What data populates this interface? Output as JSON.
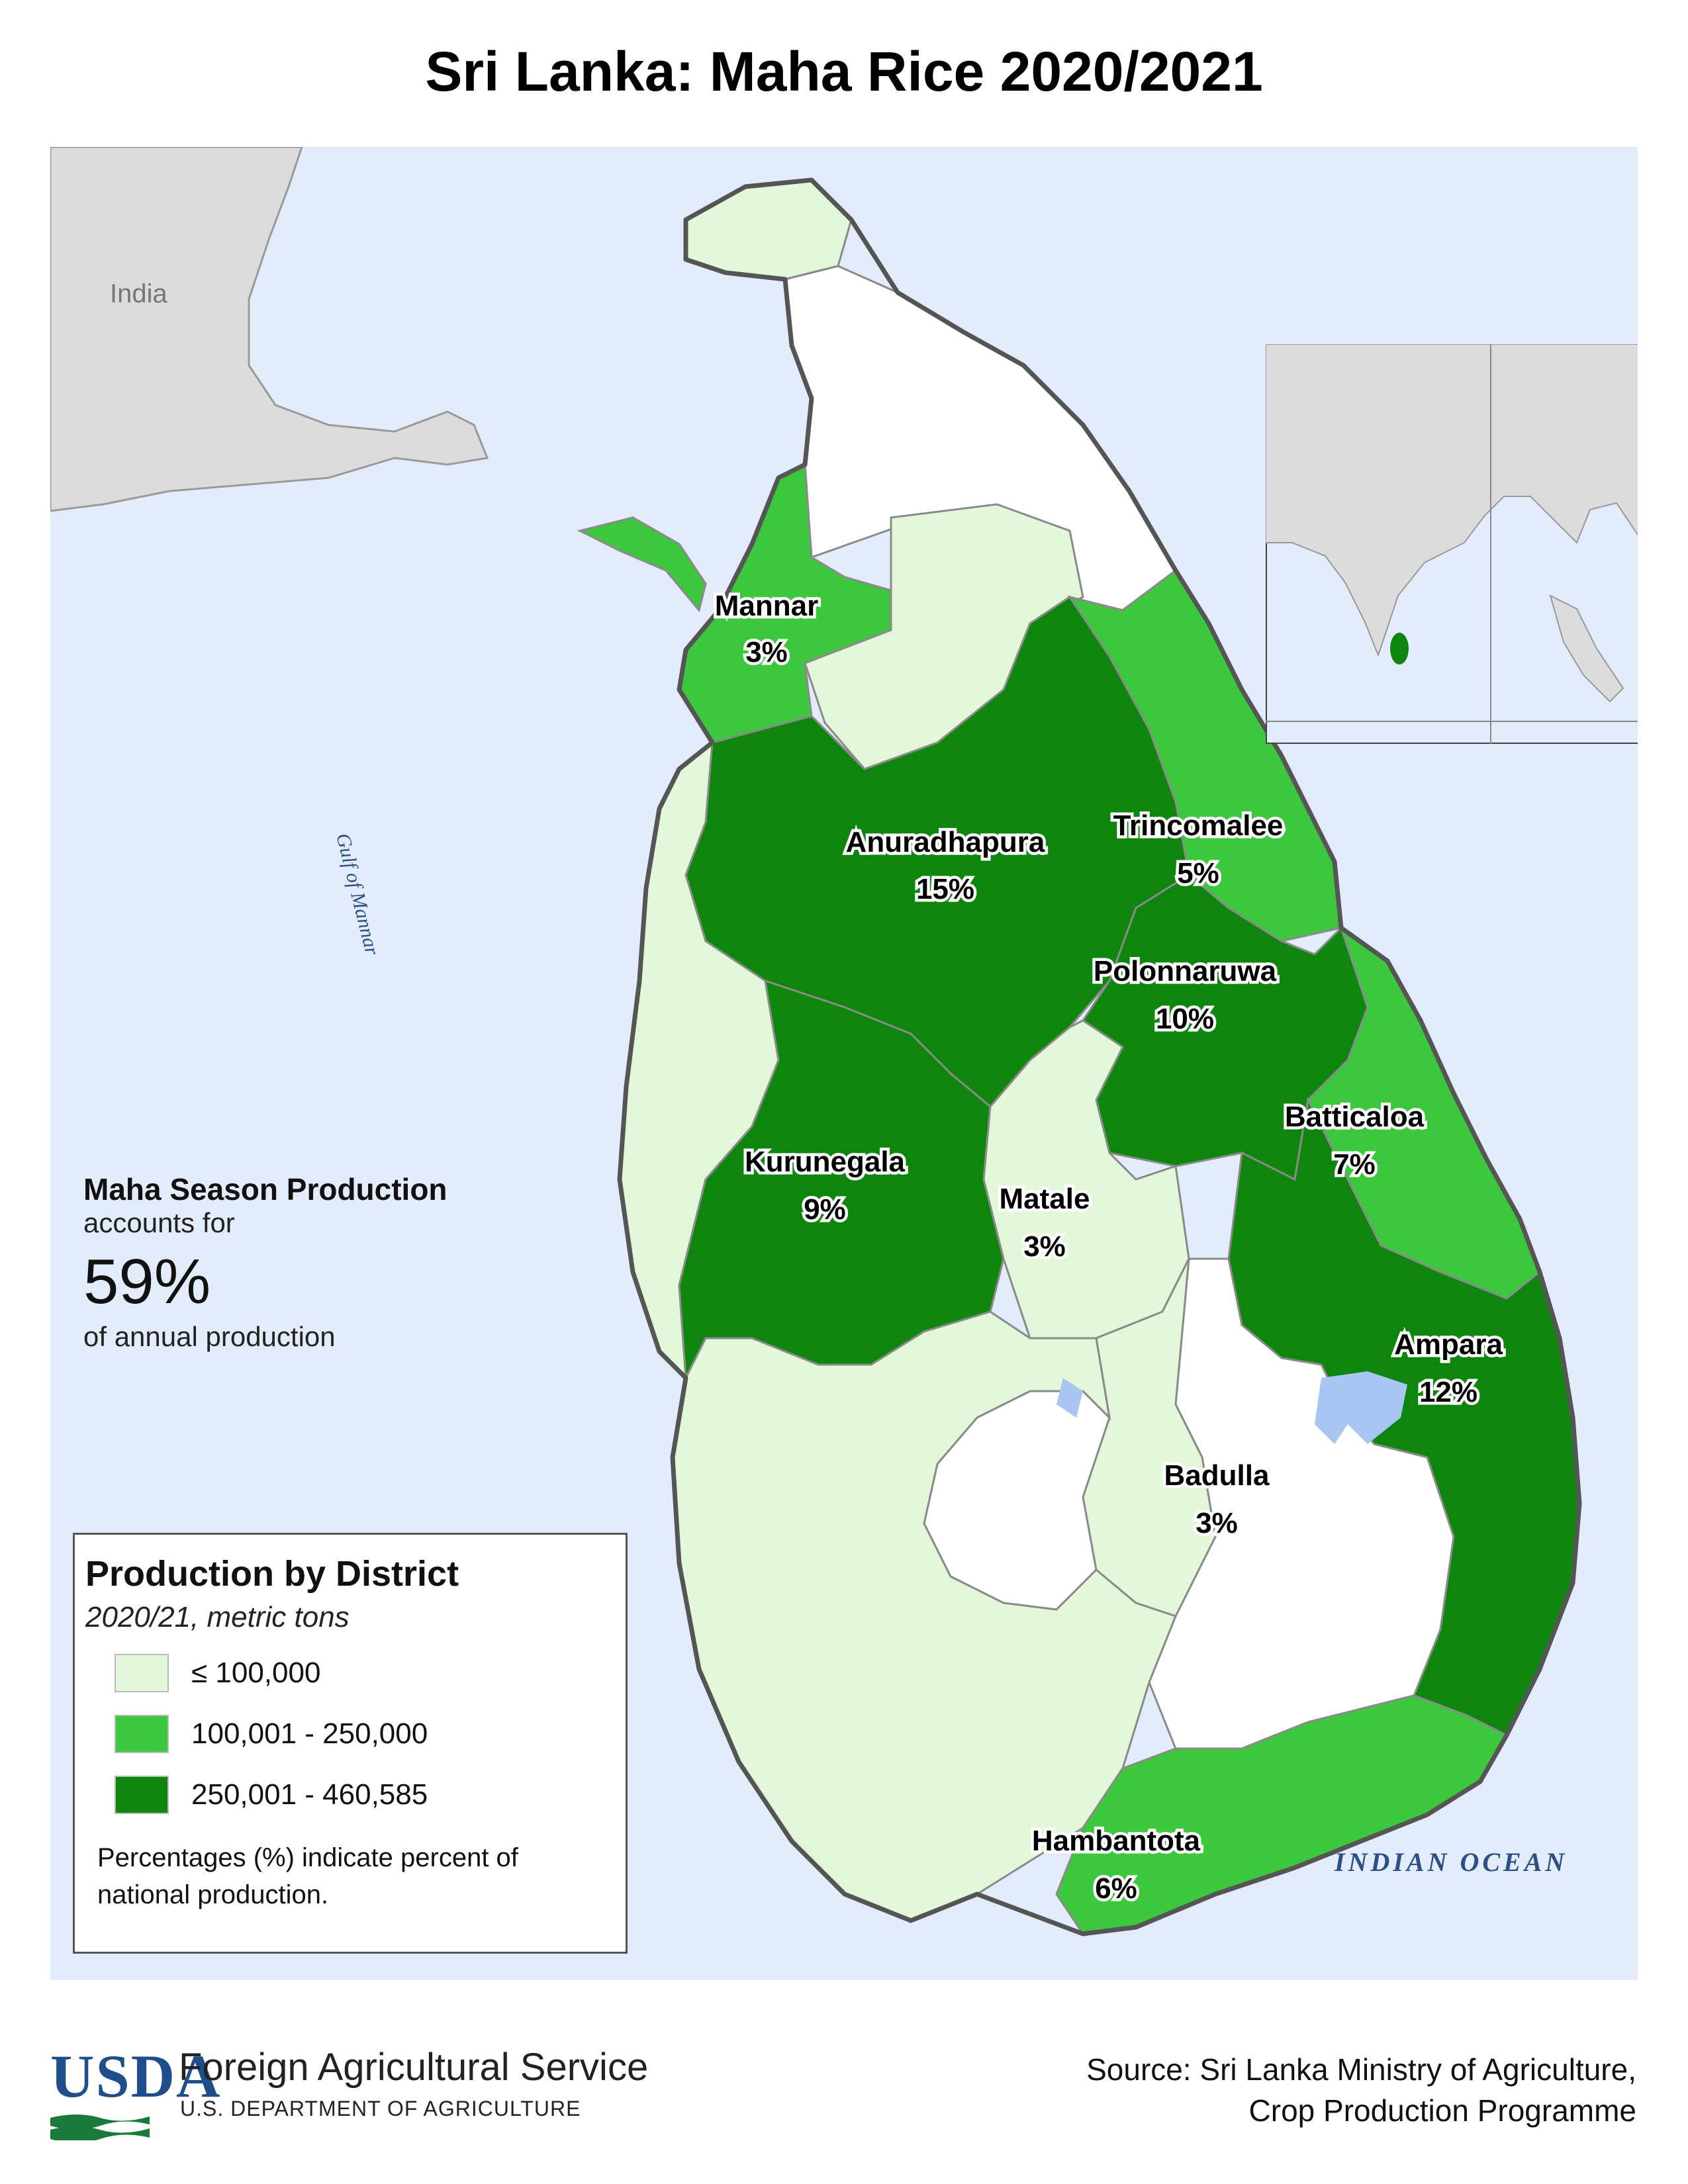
{
  "title": "Sri Lanka: Maha Rice 2020/2021",
  "colors": {
    "ocean": "#e3ecfa",
    "land_neighbors": "#dcdcdc",
    "no_data": "#ffffff",
    "class_low": "#e2f8d8",
    "class_mid": "#3cc83c",
    "class_high": "#0e860e",
    "water": "#a9c6f2"
  },
  "map_labels": {
    "country": "India",
    "gulf": "Gulf of Mannar",
    "ocean": "INDIAN OCEAN"
  },
  "districts": [
    {
      "name": "Mannar",
      "percent": "3%",
      "class": "mid"
    },
    {
      "name": "Anuradhapura",
      "percent": "15%",
      "class": "high"
    },
    {
      "name": "Trincomalee",
      "percent": "5%",
      "class": "mid"
    },
    {
      "name": "Polonnaruwa",
      "percent": "10%",
      "class": "high"
    },
    {
      "name": "Batticaloa",
      "percent": "7%",
      "class": "mid"
    },
    {
      "name": "Kurunegala",
      "percent": "9%",
      "class": "high"
    },
    {
      "name": "Matale",
      "percent": "3%",
      "class": "low"
    },
    {
      "name": "Ampara",
      "percent": "12%",
      "class": "high"
    },
    {
      "name": "Badulla",
      "percent": "3%",
      "class": "low"
    },
    {
      "name": "Hambantota",
      "percent": "6%",
      "class": "mid"
    }
  ],
  "stat": {
    "heading": "Maha Season Production",
    "pre": "accounts for",
    "value": "59%",
    "post": "of annual production"
  },
  "legend": {
    "title": "Production by District",
    "subtitle": "2020/21, metric tons",
    "items": [
      {
        "label": "≤ 100,000",
        "color": "#e2f8d8"
      },
      {
        "label": "100,001 - 250,000",
        "color": "#3cc83c"
      },
      {
        "label": "250,001 - 460,585",
        "color": "#0e860e"
      }
    ],
    "note": "Percentages (%) indicate percent of national production."
  },
  "footer": {
    "logo_text": "USDA",
    "agency": "Foreign Agricultural Service",
    "department": "U.S. DEPARTMENT OF AGRICULTURE",
    "source_line1": "Source: Sri Lanka Ministry of Agriculture,",
    "source_line2": "Crop Production Programme"
  }
}
